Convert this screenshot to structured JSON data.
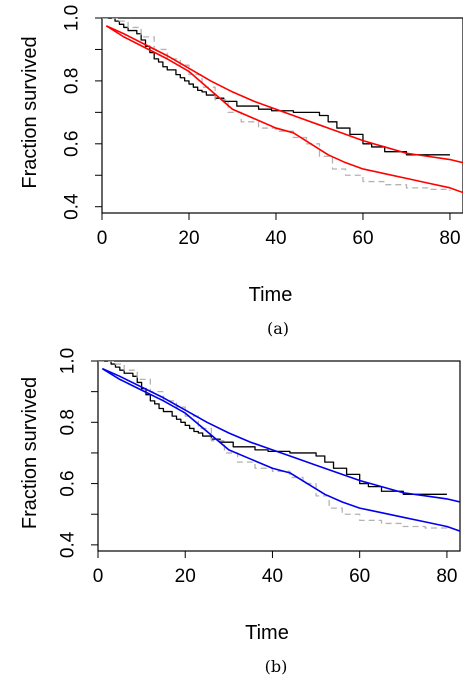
{
  "chart_data": [
    {
      "type": "line",
      "caption": "(a)",
      "xlabel": "Time",
      "ylabel": "Fraction survived",
      "xlim": [
        0,
        83
      ],
      "ylim": [
        0.38,
        1.0
      ],
      "xticks": [
        0,
        20,
        40,
        60,
        80
      ],
      "yticks": [
        0.4,
        0.6,
        0.8,
        1.0
      ],
      "ytick_labels": [
        "0.4",
        "0.6",
        "0.8",
        "1.0"
      ],
      "grid": false,
      "legend": "none",
      "series": [
        {
          "style": "step",
          "color": "#000000",
          "dash": "solid",
          "points": [
            [
              0,
              1.0
            ],
            [
              3,
              0.99
            ],
            [
              4,
              0.98
            ],
            [
              5,
              0.97
            ],
            [
              6,
              0.96
            ],
            [
              8,
              0.95
            ],
            [
              9,
              0.93
            ],
            [
              10,
              0.91
            ],
            [
              11,
              0.89
            ],
            [
              12,
              0.87
            ],
            [
              13,
              0.86
            ],
            [
              14,
              0.845
            ],
            [
              15,
              0.835
            ],
            [
              17,
              0.82
            ],
            [
              18,
              0.81
            ],
            [
              19,
              0.8
            ],
            [
              20,
              0.79
            ],
            [
              21,
              0.78
            ],
            [
              22,
              0.77
            ],
            [
              23,
              0.765
            ],
            [
              24,
              0.755
            ],
            [
              26,
              0.745
            ],
            [
              28,
              0.735
            ],
            [
              31,
              0.72
            ],
            [
              36,
              0.71
            ],
            [
              39,
              0.705
            ],
            [
              44,
              0.7
            ],
            [
              50,
              0.69
            ],
            [
              52,
              0.67
            ],
            [
              54,
              0.65
            ],
            [
              57,
              0.63
            ],
            [
              60,
              0.6
            ],
            [
              62,
              0.59
            ],
            [
              65,
              0.575
            ],
            [
              70,
              0.565
            ],
            [
              80,
              0.565
            ]
          ]
        },
        {
          "style": "step",
          "color": "#b3b3b3",
          "dash": "dashed",
          "points": [
            [
              0,
              1.0
            ],
            [
              4,
              0.99
            ],
            [
              6,
              0.97
            ],
            [
              9,
              0.94
            ],
            [
              12,
              0.9
            ],
            [
              15,
              0.87
            ],
            [
              18,
              0.85
            ],
            [
              20,
              0.82
            ],
            [
              23,
              0.78
            ],
            [
              26,
              0.74
            ],
            [
              29,
              0.7
            ],
            [
              32,
              0.67
            ],
            [
              36,
              0.65
            ],
            [
              40,
              0.64
            ],
            [
              44,
              0.62
            ],
            [
              47,
              0.6
            ],
            [
              50,
              0.56
            ],
            [
              53,
              0.52
            ],
            [
              56,
              0.5
            ],
            [
              60,
              0.48
            ],
            [
              65,
              0.47
            ],
            [
              70,
              0.46
            ],
            [
              75,
              0.455
            ],
            [
              80,
              0.45
            ]
          ]
        },
        {
          "style": "smooth",
          "color": "#ff0000",
          "dash": "solid",
          "points": [
            [
              1,
              0.975
            ],
            [
              5,
              0.95
            ],
            [
              10,
              0.915
            ],
            [
              15,
              0.88
            ],
            [
              20,
              0.84
            ],
            [
              25,
              0.8
            ],
            [
              30,
              0.765
            ],
            [
              35,
              0.735
            ],
            [
              40,
              0.71
            ],
            [
              45,
              0.685
            ],
            [
              50,
              0.66
            ],
            [
              55,
              0.635
            ],
            [
              60,
              0.61
            ],
            [
              65,
              0.59
            ],
            [
              70,
              0.57
            ],
            [
              75,
              0.56
            ],
            [
              80,
              0.55
            ],
            [
              83,
              0.54
            ]
          ]
        },
        {
          "style": "smooth",
          "color": "#ff0000",
          "dash": "solid",
          "points": [
            [
              1,
              0.975
            ],
            [
              5,
              0.94
            ],
            [
              10,
              0.905
            ],
            [
              15,
              0.87
            ],
            [
              20,
              0.83
            ],
            [
              25,
              0.77
            ],
            [
              30,
              0.71
            ],
            [
              35,
              0.68
            ],
            [
              40,
              0.65
            ],
            [
              44,
              0.635
            ],
            [
              48,
              0.6
            ],
            [
              52,
              0.565
            ],
            [
              56,
              0.54
            ],
            [
              60,
              0.52
            ],
            [
              65,
              0.505
            ],
            [
              70,
              0.49
            ],
            [
              75,
              0.475
            ],
            [
              80,
              0.46
            ],
            [
              83,
              0.445
            ]
          ]
        }
      ]
    },
    {
      "type": "line",
      "caption": "(b)",
      "xlabel": "Time",
      "ylabel": "Fraction survived",
      "xlim": [
        0,
        83
      ],
      "ylim": [
        0.38,
        1.0
      ],
      "xticks": [
        0,
        20,
        40,
        60,
        80
      ],
      "yticks": [
        0.4,
        0.6,
        0.8,
        1.0
      ],
      "ytick_labels": [
        "0.4",
        "0.6",
        "0.8",
        "1.0"
      ],
      "grid": false,
      "legend": "none",
      "series": [
        {
          "style": "step",
          "color": "#000000",
          "dash": "solid",
          "points": [
            [
              0,
              1.0
            ],
            [
              3,
              0.99
            ],
            [
              4,
              0.98
            ],
            [
              5,
              0.97
            ],
            [
              6,
              0.96
            ],
            [
              8,
              0.95
            ],
            [
              9,
              0.93
            ],
            [
              10,
              0.91
            ],
            [
              11,
              0.89
            ],
            [
              12,
              0.87
            ],
            [
              13,
              0.86
            ],
            [
              14,
              0.845
            ],
            [
              15,
              0.835
            ],
            [
              17,
              0.82
            ],
            [
              18,
              0.81
            ],
            [
              19,
              0.8
            ],
            [
              20,
              0.79
            ],
            [
              21,
              0.78
            ],
            [
              22,
              0.77
            ],
            [
              23,
              0.765
            ],
            [
              24,
              0.755
            ],
            [
              26,
              0.745
            ],
            [
              28,
              0.735
            ],
            [
              31,
              0.72
            ],
            [
              36,
              0.71
            ],
            [
              39,
              0.705
            ],
            [
              44,
              0.7
            ],
            [
              50,
              0.69
            ],
            [
              52,
              0.67
            ],
            [
              54,
              0.65
            ],
            [
              57,
              0.63
            ],
            [
              60,
              0.6
            ],
            [
              62,
              0.59
            ],
            [
              65,
              0.575
            ],
            [
              70,
              0.565
            ],
            [
              80,
              0.565
            ]
          ]
        },
        {
          "style": "step",
          "color": "#b3b3b3",
          "dash": "dashed",
          "points": [
            [
              0,
              1.0
            ],
            [
              4,
              0.99
            ],
            [
              6,
              0.97
            ],
            [
              9,
              0.94
            ],
            [
              12,
              0.9
            ],
            [
              15,
              0.87
            ],
            [
              18,
              0.85
            ],
            [
              20,
              0.82
            ],
            [
              23,
              0.78
            ],
            [
              26,
              0.74
            ],
            [
              29,
              0.7
            ],
            [
              32,
              0.67
            ],
            [
              36,
              0.65
            ],
            [
              40,
              0.64
            ],
            [
              44,
              0.62
            ],
            [
              47,
              0.6
            ],
            [
              50,
              0.56
            ],
            [
              53,
              0.52
            ],
            [
              56,
              0.5
            ],
            [
              60,
              0.48
            ],
            [
              65,
              0.47
            ],
            [
              70,
              0.46
            ],
            [
              75,
              0.455
            ],
            [
              80,
              0.45
            ]
          ]
        },
        {
          "style": "smooth",
          "color": "#0000ee",
          "dash": "solid",
          "points": [
            [
              1,
              0.975
            ],
            [
              5,
              0.95
            ],
            [
              10,
              0.915
            ],
            [
              15,
              0.88
            ],
            [
              20,
              0.84
            ],
            [
              25,
              0.8
            ],
            [
              30,
              0.765
            ],
            [
              35,
              0.735
            ],
            [
              40,
              0.71
            ],
            [
              45,
              0.685
            ],
            [
              50,
              0.66
            ],
            [
              55,
              0.635
            ],
            [
              60,
              0.61
            ],
            [
              65,
              0.59
            ],
            [
              70,
              0.57
            ],
            [
              75,
              0.56
            ],
            [
              80,
              0.55
            ],
            [
              83,
              0.54
            ]
          ]
        },
        {
          "style": "smooth",
          "color": "#0000ee",
          "dash": "solid",
          "points": [
            [
              1,
              0.975
            ],
            [
              5,
              0.94
            ],
            [
              10,
              0.905
            ],
            [
              15,
              0.87
            ],
            [
              20,
              0.83
            ],
            [
              25,
              0.77
            ],
            [
              30,
              0.71
            ],
            [
              35,
              0.68
            ],
            [
              40,
              0.65
            ],
            [
              44,
              0.635
            ],
            [
              48,
              0.6
            ],
            [
              52,
              0.565
            ],
            [
              56,
              0.54
            ],
            [
              60,
              0.52
            ],
            [
              65,
              0.505
            ],
            [
              70,
              0.49
            ],
            [
              75,
              0.475
            ],
            [
              80,
              0.46
            ],
            [
              83,
              0.445
            ]
          ]
        }
      ]
    }
  ]
}
